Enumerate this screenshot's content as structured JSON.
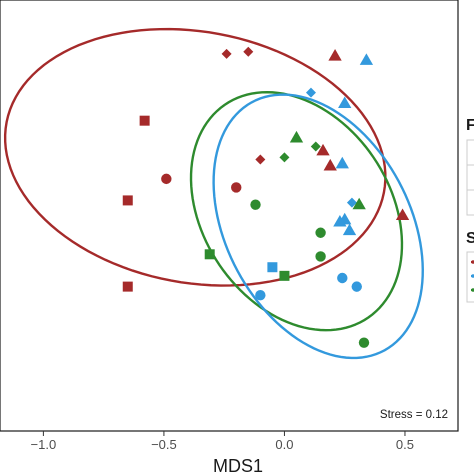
{
  "chart_data": {
    "type": "scatter",
    "xlabel": "MDS1",
    "ylabel": "",
    "xlim": [
      -1.18,
      0.72
    ],
    "ylim": [
      -1.0,
      1.0
    ],
    "x_ticks": [
      -1.0,
      -0.5,
      0.0,
      0.5
    ],
    "x_tick_labels": [
      "−1.0",
      "−0.5",
      "0.0",
      "0.5"
    ],
    "annotation": "Stress = 0.12",
    "colors": {
      "red": "#a52a2a",
      "blue": "#3399dd",
      "green": "#2e8b2e"
    },
    "ellipses": [
      {
        "color": "red",
        "cx": -0.37,
        "cy": 0.27,
        "rx": 0.8,
        "ry": 0.58,
        "angle_deg": -14
      },
      {
        "color": "green",
        "cx": 0.05,
        "cy": 0.02,
        "rx": 0.58,
        "ry": 0.4,
        "angle_deg": -65
      },
      {
        "color": "blue",
        "cx": 0.14,
        "cy": -0.05,
        "rx": 0.64,
        "ry": 0.39,
        "angle_deg": -68
      }
    ],
    "points": [
      {
        "x": -0.24,
        "y": 0.75,
        "color": "red",
        "shape": "diamond"
      },
      {
        "x": -0.15,
        "y": 0.76,
        "color": "red",
        "shape": "diamond"
      },
      {
        "x": 0.21,
        "y": 0.74,
        "color": "red",
        "shape": "triangle"
      },
      {
        "x": 0.34,
        "y": 0.72,
        "color": "blue",
        "shape": "triangle"
      },
      {
        "x": -0.58,
        "y": 0.44,
        "color": "red",
        "shape": "square"
      },
      {
        "x": 0.11,
        "y": 0.57,
        "color": "blue",
        "shape": "diamond"
      },
      {
        "x": 0.25,
        "y": 0.52,
        "color": "blue",
        "shape": "triangle"
      },
      {
        "x": 0.05,
        "y": 0.36,
        "color": "green",
        "shape": "triangle"
      },
      {
        "x": 0.13,
        "y": 0.32,
        "color": "green",
        "shape": "diamond"
      },
      {
        "x": 0.16,
        "y": 0.3,
        "color": "red",
        "shape": "triangle"
      },
      {
        "x": 0.0,
        "y": 0.27,
        "color": "green",
        "shape": "diamond"
      },
      {
        "x": -0.1,
        "y": 0.26,
        "color": "red",
        "shape": "diamond"
      },
      {
        "x": 0.19,
        "y": 0.23,
        "color": "red",
        "shape": "triangle"
      },
      {
        "x": 0.24,
        "y": 0.24,
        "color": "blue",
        "shape": "triangle"
      },
      {
        "x": -0.49,
        "y": 0.17,
        "color": "red",
        "shape": "circle"
      },
      {
        "x": -0.2,
        "y": 0.13,
        "color": "red",
        "shape": "circle"
      },
      {
        "x": -0.12,
        "y": 0.05,
        "color": "green",
        "shape": "circle"
      },
      {
        "x": -0.65,
        "y": 0.07,
        "color": "red",
        "shape": "square"
      },
      {
        "x": 0.28,
        "y": 0.06,
        "color": "blue",
        "shape": "diamond"
      },
      {
        "x": 0.31,
        "y": 0.05,
        "color": "green",
        "shape": "triangle"
      },
      {
        "x": 0.49,
        "y": 0.0,
        "color": "red",
        "shape": "triangle"
      },
      {
        "x": 0.25,
        "y": -0.02,
        "color": "blue",
        "shape": "triangle"
      },
      {
        "x": 0.23,
        "y": -0.03,
        "color": "blue",
        "shape": "triangle"
      },
      {
        "x": 0.27,
        "y": -0.07,
        "color": "blue",
        "shape": "triangle"
      },
      {
        "x": 0.15,
        "y": -0.08,
        "color": "green",
        "shape": "circle"
      },
      {
        "x": -0.31,
        "y": -0.18,
        "color": "green",
        "shape": "square"
      },
      {
        "x": 0.15,
        "y": -0.19,
        "color": "green",
        "shape": "circle"
      },
      {
        "x": -0.05,
        "y": -0.24,
        "color": "blue",
        "shape": "square"
      },
      {
        "x": 0.0,
        "y": -0.28,
        "color": "green",
        "shape": "square"
      },
      {
        "x": 0.24,
        "y": -0.29,
        "color": "blue",
        "shape": "circle"
      },
      {
        "x": -0.65,
        "y": -0.33,
        "color": "red",
        "shape": "square"
      },
      {
        "x": 0.3,
        "y": -0.33,
        "color": "blue",
        "shape": "circle"
      },
      {
        "x": -0.1,
        "y": -0.37,
        "color": "blue",
        "shape": "circle"
      },
      {
        "x": 0.33,
        "y": -0.59,
        "color": "green",
        "shape": "circle"
      }
    ],
    "legend_partial_glyphs": [
      "F",
      "S"
    ],
    "legend_partial_colors": [
      "red",
      "blue",
      "green"
    ]
  }
}
